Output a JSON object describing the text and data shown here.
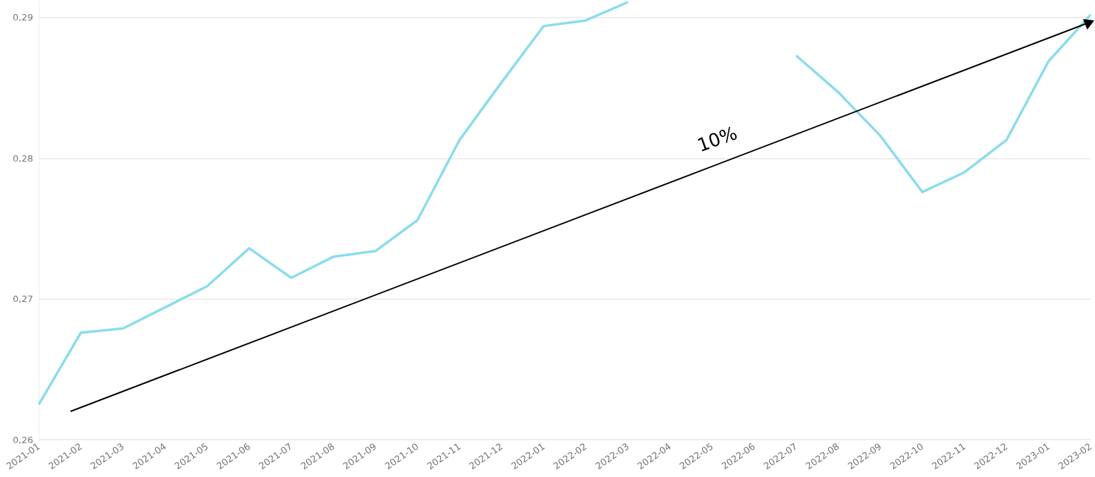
{
  "chart_data": {
    "type": "line",
    "categories": [
      "2021-01",
      "2021-02",
      "2021-03",
      "2021-04",
      "2021-05",
      "2021-06",
      "2021-07",
      "2021-08",
      "2021-09",
      "2021-10",
      "2021-11",
      "2021-12",
      "2022-01",
      "2022-02",
      "2022-03",
      "2022-04",
      "2022-05",
      "2022-06",
      "2022-07",
      "2022-08",
      "2022-09",
      "2022-10",
      "2022-11",
      "2022-12",
      "2023-01",
      "2023-02"
    ],
    "series": [
      {
        "color": "#8adcec",
        "values": [
          0.2625,
          0.2676,
          0.2679,
          0.2694,
          0.2709,
          0.2736,
          0.2715,
          0.273,
          0.2734,
          0.2756,
          0.2813,
          0.2854,
          0.2894,
          0.2898,
          0.2911,
          null,
          null,
          null,
          0.2873,
          0.2847,
          0.2816,
          0.2776,
          0.279,
          0.2813,
          0.2869,
          0.2902
        ]
      }
    ],
    "ylim": [
      0.26,
      0.2912
    ],
    "yticks": [
      {
        "value": 0.26,
        "label": "0,26"
      },
      {
        "value": 0.27,
        "label": "0,27"
      },
      {
        "value": 0.28,
        "label": "0,28"
      },
      {
        "value": 0.29,
        "label": "0,29"
      }
    ],
    "grid": "y",
    "line_style": "solid",
    "annotations": [
      "10%"
    ]
  }
}
